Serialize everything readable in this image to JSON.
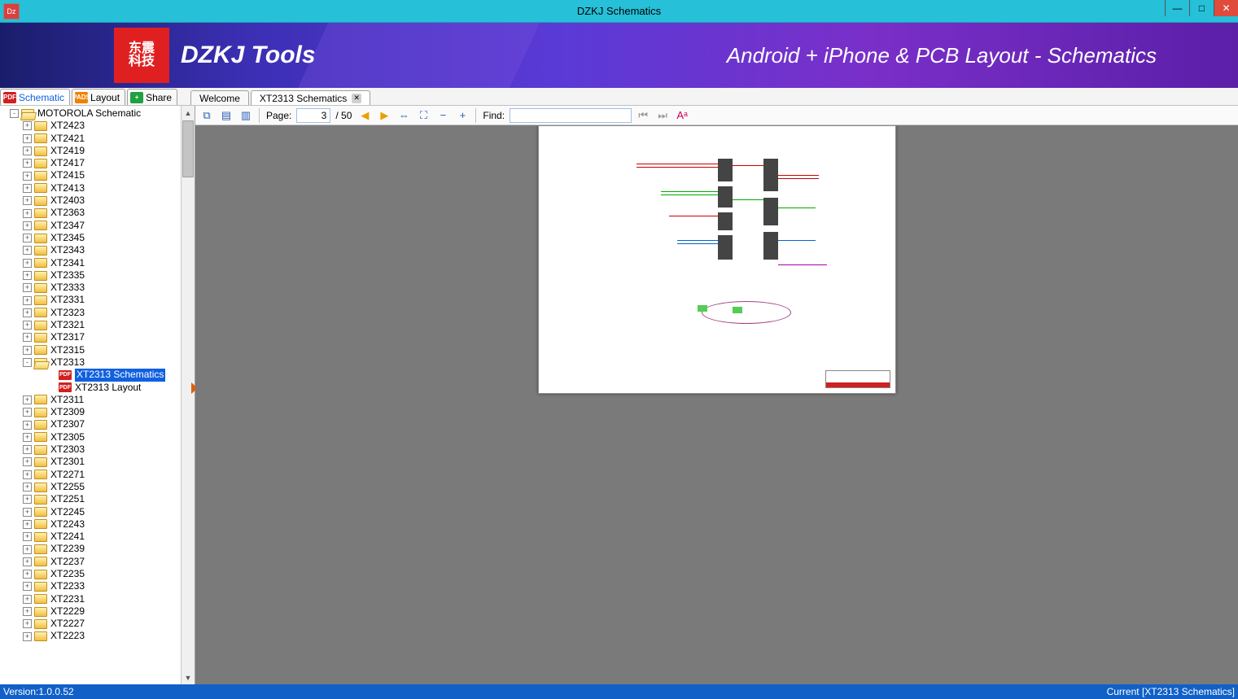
{
  "window": {
    "title": "DZKJ Schematics",
    "logo_text_top": "东震",
    "logo_text_bottom": "科技",
    "brand": "DZKJ Tools",
    "tagline": "Android + iPhone & PCB Layout - Schematics"
  },
  "colors": {
    "titlebar": "#26c0d8",
    "close_btn": "#e04b3c",
    "banner_from": "#1a1d6b",
    "banner_to": "#5b1fa8",
    "logo_bg": "#e02020",
    "selection": "#1060e0",
    "statusbar": "#1060c8",
    "viewer_bg": "#7a7a7a",
    "page_bg": "#ffffff"
  },
  "side_tabs": [
    {
      "label": "Schematic",
      "icon": "PDF",
      "icon_class": "ti-pdf",
      "active": true
    },
    {
      "label": "Layout",
      "icon": "PADS",
      "icon_class": "ti-pads",
      "active": false
    },
    {
      "label": "Share",
      "icon": "+",
      "icon_class": "ti-share",
      "active": false
    }
  ],
  "doc_tabs": [
    {
      "label": "Welcome",
      "active": false,
      "closable": false
    },
    {
      "label": "XT2313 Schematics",
      "active": true,
      "closable": true
    }
  ],
  "toolbar": {
    "page_label": "Page:",
    "page_current": "3",
    "page_sep": " / ",
    "page_total": "50",
    "find_label": "Find:",
    "find_value": ""
  },
  "tree": {
    "root": {
      "label": "MOTOROLA Schematic",
      "expanded": true
    },
    "items": [
      "XT2423",
      "XT2421",
      "XT2419",
      "XT2417",
      "XT2415",
      "XT2413",
      "XT2403",
      "XT2363",
      "XT2347",
      "XT2345",
      "XT2343",
      "XT2341",
      "XT2335",
      "XT2333",
      "XT2331",
      "XT2323",
      "XT2321",
      "XT2317",
      "XT2315"
    ],
    "expanded_item": "XT2313",
    "expanded_children": [
      {
        "label": "XT2313 Schematics",
        "selected": true
      },
      {
        "label": "XT2313 Layout",
        "selected": false
      }
    ],
    "items_after": [
      "XT2311",
      "XT2309",
      "XT2307",
      "XT2305",
      "XT2303",
      "XT2301",
      "XT2271",
      "XT2255",
      "XT2251",
      "XT2245",
      "XT2243",
      "XT2241",
      "XT2239",
      "XT2237",
      "XT2235",
      "XT2233",
      "XT2231",
      "XT2229",
      "XT2227",
      "XT2223"
    ]
  },
  "status": {
    "left": "Version:1.0.0.52",
    "right": "Current [XT2313 Schematics]"
  }
}
